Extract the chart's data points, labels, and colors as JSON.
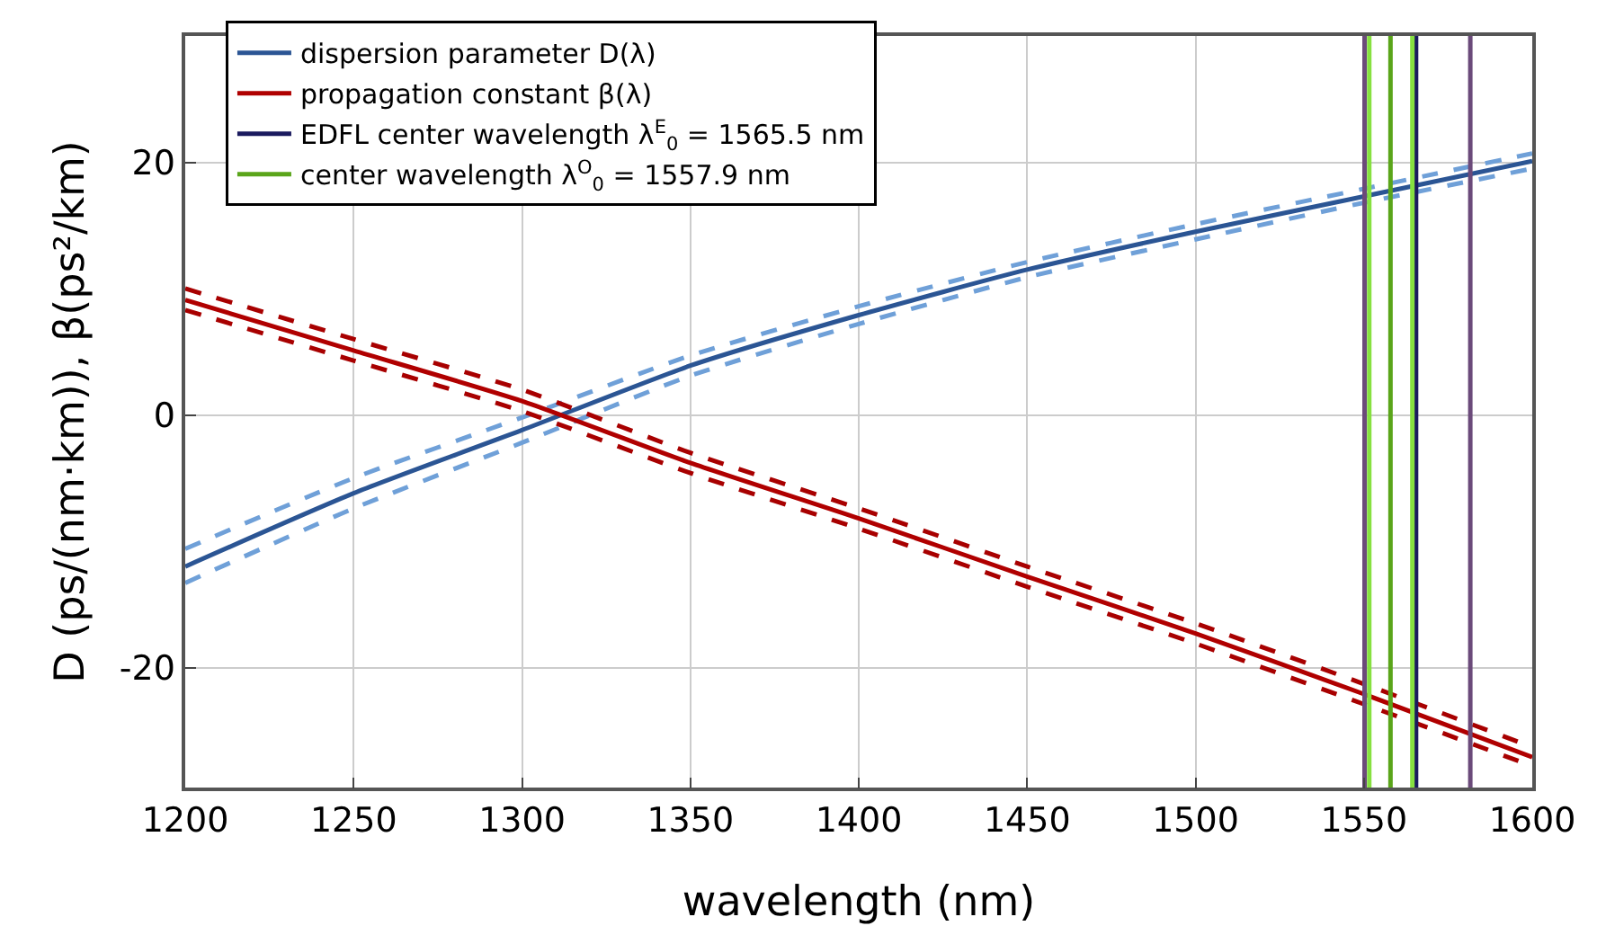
{
  "chart_data": {
    "type": "line",
    "xlabel": "wavelength (nm)",
    "ylabel": "D (ps/(nm·km)), β(ps²/km)",
    "xlim": [
      1200,
      1600
    ],
    "xticks": [
      1200,
      1250,
      1300,
      1350,
      1400,
      1450,
      1500,
      1550,
      1600
    ],
    "ylim": [
      -29.5,
      30
    ],
    "yticks": [
      -20,
      0,
      20
    ],
    "grid": true,
    "legend": "top left",
    "marker": "none",
    "series": [
      {
        "name": "dispersion parameter D(λ)",
        "color": "#2b5594",
        "line_style": "solid",
        "x": [
          1200,
          1250,
          1300,
          1350,
          1400,
          1450,
          1500,
          1550,
          1600
        ],
        "values": [
          -12,
          -6.2,
          -1.2,
          3.9,
          7.9,
          11.5,
          14.5,
          17.3,
          20.1
        ]
      },
      {
        "color": "#6fa0d8",
        "line_style": "dashed",
        "x": [
          1200,
          1250,
          1300,
          1350,
          1400,
          1450,
          1500,
          1550,
          1600
        ],
        "values": [
          -10.6,
          -5,
          -0.2,
          4.7,
          8.6,
          12.1,
          15.1,
          17.9,
          20.7
        ]
      },
      {
        "color": "#6fa0d8",
        "line_style": "dashed",
        "x": [
          1200,
          1250,
          1300,
          1350,
          1400,
          1450,
          1500,
          1550,
          1600
        ],
        "values": [
          -13.3,
          -7.4,
          -2.2,
          3.1,
          7.2,
          10.9,
          13.9,
          16.8,
          19.5
        ]
      },
      {
        "name": "propagation constant β(λ)",
        "color": "#b00000",
        "line_style": "solid",
        "x": [
          1200,
          1250,
          1300,
          1350,
          1400,
          1450,
          1500,
          1550,
          1600
        ],
        "values": [
          9.1,
          5.1,
          1.1,
          -3.8,
          -8.2,
          -12.8,
          -17.3,
          -22.1,
          -27.1
        ]
      },
      {
        "color": "#a80000",
        "line_style": "dashed",
        "x": [
          1200,
          1250,
          1300,
          1350,
          1400,
          1450,
          1500,
          1550,
          1600
        ],
        "values": [
          10,
          6,
          2,
          -3,
          -7.4,
          -12,
          -16.5,
          -21.3,
          -26.3
        ]
      },
      {
        "color": "#a80000",
        "line_style": "dashed",
        "x": [
          1200,
          1250,
          1300,
          1350,
          1400,
          1450,
          1500,
          1550,
          1600
        ],
        "values": [
          8.3,
          4.3,
          0.3,
          -4.6,
          -9,
          -13.6,
          -18.1,
          -22.9,
          -27.8
        ]
      },
      {
        "name": "EDFL center wavelength λ$^{E}$$_{0}$ = 1565.5 nm",
        "color": "#1a1a5e",
        "line_style": "solid",
        "x": [
          1565.5,
          1565.5
        ],
        "values": [
          -29.5,
          30
        ]
      },
      {
        "name": "center wavelength λ$^{O}$$_{0}$ = 1557.9 nm",
        "color": "#5aa51a",
        "line_style": "solid",
        "x": [
          1557.9,
          1557.9
        ],
        "values": [
          -29.5,
          30
        ]
      },
      {
        "color": "#86e040",
        "line_style": "solid",
        "x": [
          1551.6,
          1551.6
        ],
        "values": [
          -29.5,
          30
        ]
      },
      {
        "color": "#86e040",
        "line_style": "solid",
        "x": [
          1564.4,
          1564.4
        ],
        "values": [
          -29.5,
          30
        ]
      },
      {
        "color": "#6b4a7a",
        "line_style": "solid",
        "x": [
          1550.2,
          1550.2
        ],
        "values": [
          -29.5,
          30
        ]
      },
      {
        "color": "#6b4a7a",
        "line_style": "solid",
        "x": [
          1581.6,
          1581.6
        ],
        "values": [
          -29.5,
          30
        ]
      }
    ]
  }
}
